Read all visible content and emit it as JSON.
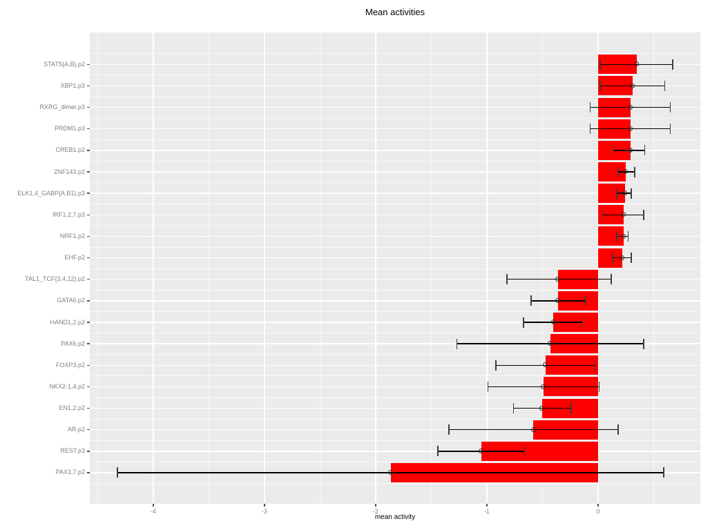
{
  "chart": {
    "title": "Mean activities",
    "xlabel": "mean activity"
  },
  "colors": {
    "bar_fill": "#ff0000",
    "panel_background": "#ebebeb",
    "gridline": "#ffffff",
    "error_line": "#000000",
    "tick_text": "#7f7f7f",
    "tick_mark": "#4d4d4d",
    "title_text": "#000000"
  },
  "chart_data": {
    "type": "bar",
    "orientation": "horizontal",
    "title": "Mean activities",
    "xlabel": "mean activity",
    "ylabel": "",
    "xlim": [
      -4.57,
      0.92
    ],
    "x_ticks": [
      -4,
      -3,
      -2,
      -1,
      0
    ],
    "grid": true,
    "error_bars": true,
    "categories": [
      "STAT5{A,B}.p2",
      "XBP1.p3",
      "RXRG_dimer.p3",
      "PRDM1.p3",
      "CREB1.p2",
      "ZNF143.p2",
      "ELK1,4_GABP{A,B1}.p3",
      "IRF1,2,7.p3",
      "NRF1.p2",
      "EHF.p2",
      "TAL1_TCF{3,4,12}.p2",
      "GATA6.p2",
      "HAND1,2.p2",
      "PAX6.p2",
      "FOXP3.p2",
      "NKX2-1,4.p2",
      "EN1,2.p2",
      "AR.p2",
      "REST.p3",
      "PAX3,7.p2"
    ],
    "values": [
      0.35,
      0.31,
      0.29,
      0.29,
      0.29,
      0.25,
      0.24,
      0.23,
      0.23,
      0.22,
      -0.36,
      -0.36,
      -0.4,
      -0.43,
      -0.47,
      -0.49,
      -0.5,
      -0.58,
      -1.05,
      -1.86
    ],
    "error_low": [
      0.02,
      0.02,
      -0.07,
      -0.07,
      0.14,
      0.18,
      0.17,
      0.04,
      0.17,
      0.13,
      -0.82,
      -0.6,
      -0.67,
      -1.27,
      -0.92,
      -0.99,
      -0.76,
      -1.34,
      -1.44,
      -4.32
    ],
    "error_high": [
      0.67,
      0.6,
      0.65,
      0.65,
      0.42,
      0.33,
      0.3,
      0.41,
      0.27,
      0.3,
      0.12,
      -0.11,
      -0.14,
      0.41,
      -0.02,
      0.01,
      -0.24,
      0.18,
      -0.66,
      0.59
    ]
  }
}
